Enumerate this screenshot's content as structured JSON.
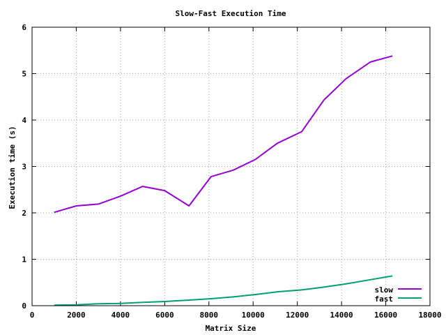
{
  "chart_data": {
    "type": "line",
    "title": "Slow-Fast Execution Time",
    "xlabel": "Matrix Size",
    "ylabel": "Execution time (s)",
    "xlim": [
      0,
      18000
    ],
    "ylim": [
      0,
      6
    ],
    "xticks": [
      0,
      2000,
      4000,
      6000,
      8000,
      10000,
      12000,
      14000,
      16000,
      18000
    ],
    "yticks": [
      0,
      1,
      2,
      3,
      4,
      5,
      6
    ],
    "grid": true,
    "legend_position": "bottom-right",
    "series": [
      {
        "name": "slow",
        "color": "#9400d3",
        "x": [
          1000,
          2000,
          3000,
          4000,
          5000,
          6000,
          7100,
          8100,
          9100,
          10100,
          11100,
          12200,
          13200,
          14200,
          15300,
          16300
        ],
        "y": [
          2.01,
          2.15,
          2.19,
          2.36,
          2.57,
          2.48,
          2.15,
          2.78,
          2.92,
          3.15,
          3.5,
          3.75,
          4.43,
          4.89,
          5.25,
          5.38
        ]
      },
      {
        "name": "fast",
        "color": "#009e73",
        "x": [
          1000,
          2000,
          3000,
          4000,
          5000,
          6000,
          7100,
          8100,
          9100,
          10100,
          11100,
          12200,
          13200,
          14200,
          15300,
          16300
        ],
        "y": [
          0.01,
          0.02,
          0.04,
          0.05,
          0.07,
          0.09,
          0.12,
          0.15,
          0.19,
          0.24,
          0.3,
          0.34,
          0.4,
          0.47,
          0.56,
          0.64
        ]
      }
    ]
  }
}
